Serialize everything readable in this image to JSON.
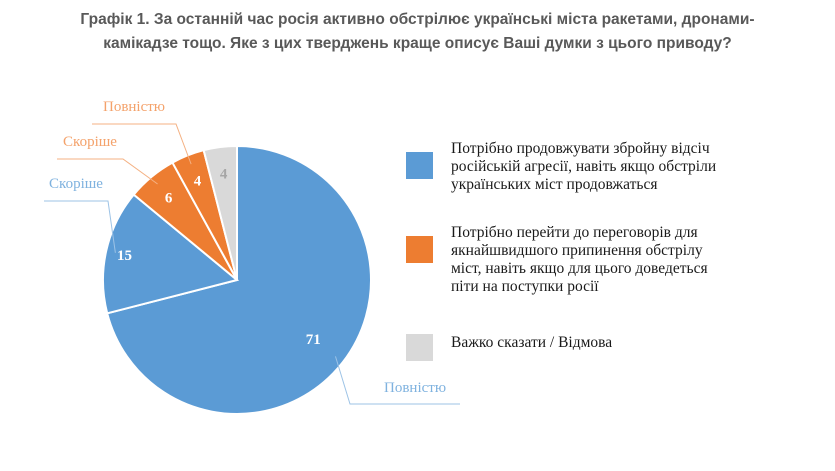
{
  "title": {
    "line1": "Графік 1. За останній час росія активно обстрілює українські міста ракетами, дронами-",
    "line2": "камікадзе тощо. Яке з цих тверджень краще описує Ваші думки з цього приводу?"
  },
  "chart_data": {
    "type": "pie",
    "title": "Графік 1. За останній час росія активно обстрілює українські міста ракетами, дронами-камікадзе тощо. Яке з цих тверджень краще описує Ваші думки з цього приводу?",
    "slices": [
      {
        "label": "Повністю",
        "value": 71,
        "color": "#5B9BD5",
        "group": "continue"
      },
      {
        "label": "Скоріше",
        "value": 15,
        "color": "#5B9BD5",
        "group": "continue"
      },
      {
        "label": "Скоріше",
        "value": 6,
        "color": "#ED7D31",
        "group": "negotiate"
      },
      {
        "label": "Повністю",
        "value": 4,
        "color": "#ED7D31",
        "group": "negotiate"
      },
      {
        "label": "",
        "value": 4,
        "color": "#D9D9D9",
        "group": "hard"
      }
    ],
    "legend": [
      {
        "lines": [
          "Потрібно продовжувати збройну відсіч",
          "російській агресії, навіть якщо обстріли",
          "українських міст продовжаться"
        ],
        "color": "#5B9BD5"
      },
      {
        "lines": [
          "Потрібно перейти до переговорів для",
          "якнайшвидшого припинення обстрілу",
          "міст, навіть якщо для цього доведеться",
          "піти на поступки росії"
        ],
        "color": "#ED7D31"
      },
      {
        "lines": [
          "Важко сказати / Відмова"
        ],
        "color": "#D9D9D9"
      }
    ],
    "legend_placement": "right"
  }
}
